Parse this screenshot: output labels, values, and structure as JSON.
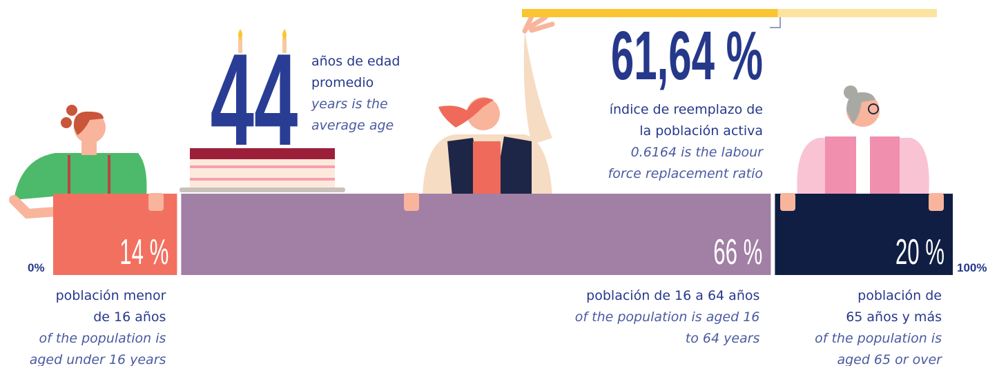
{
  "average_age": {
    "value": "44",
    "label_es": [
      "años de edad",
      "promedio"
    ],
    "label_en": [
      "years is the",
      "average age"
    ]
  },
  "replacement": {
    "value": 61.64,
    "value_label": "61,64 %",
    "label_es": [
      "índice de reemplazo de",
      "la población activa"
    ],
    "label_en": [
      "0.6164 is the labour",
      "force replacement ratio"
    ],
    "scale": [
      0,
      100
    ],
    "color": "#fbc531",
    "track_color": "#fde3a0"
  },
  "scale": [
    {
      "value": 0,
      "label": "0%"
    },
    {
      "value": 100,
      "label": "100%"
    }
  ],
  "segments": [
    {
      "value": 14,
      "value_label": "14 %",
      "color": "#f27060",
      "label_es": [
        "población menor",
        "de 16 años"
      ],
      "label_en": [
        "of the population is",
        "aged under 16 years"
      ]
    },
    {
      "value": 66,
      "value_label": "66 %",
      "color": "#a27fa5",
      "label_es": [
        "población de 16 a 64 años"
      ],
      "label_en": [
        "of the population is aged 16",
        "to 64 years"
      ]
    },
    {
      "value": 20,
      "value_label": "20 %",
      "color": "#101e43",
      "label_es": [
        "población de",
        "65 años y más"
      ],
      "label_en": [
        "of the population is",
        "aged 65 or over"
      ]
    }
  ]
}
